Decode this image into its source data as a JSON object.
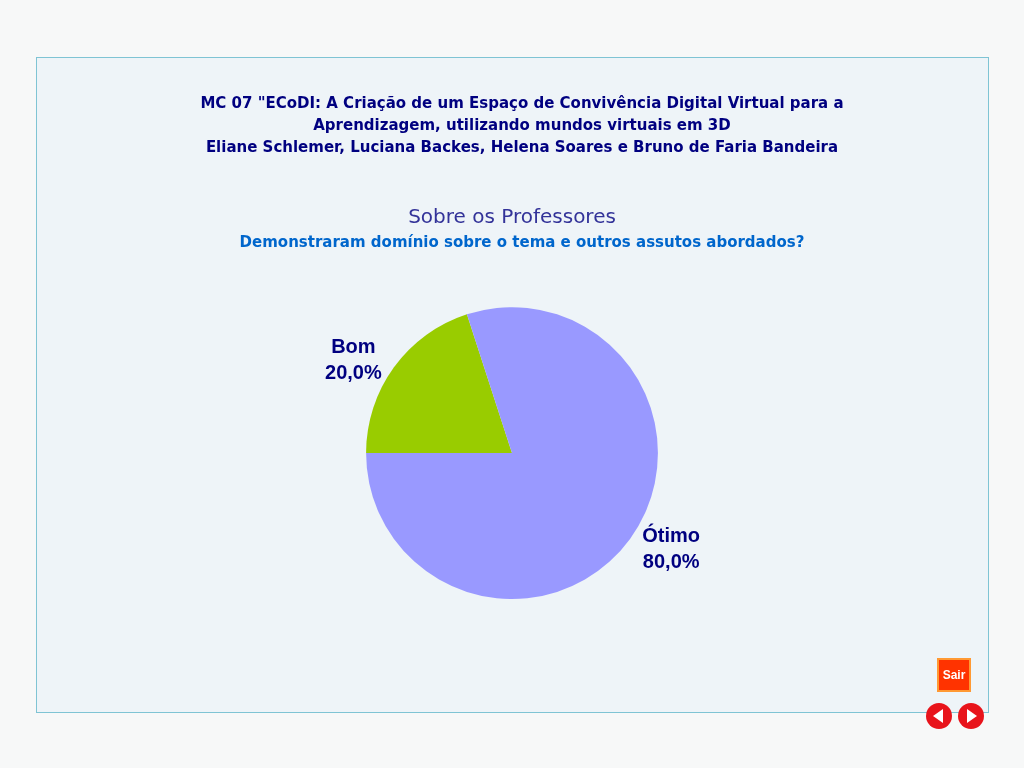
{
  "chart_data": {
    "type": "pie",
    "title": "MC 07 \"ECoDI: A Criação de um Espaço de Convivência Digital Virtual para a Aprendizagem, utilizando mundos virtuais em 3D\nEliane Schlemer, Luciana Backes, Helena Soares e Bruno de Faria Bandeira",
    "subtitle": "Sobre os Professores",
    "annotations": [
      "Demonstraram domínio sobre o tema e outros assutos abordados?",
      "Sair"
    ],
    "categories": [
      "Bom",
      "Ótimo"
    ],
    "values": [
      20,
      80
    ],
    "value_labels": [
      "20,0%",
      "80,0%"
    ],
    "colors": [
      "#99cc00",
      "#9999ff"
    ]
  }
}
